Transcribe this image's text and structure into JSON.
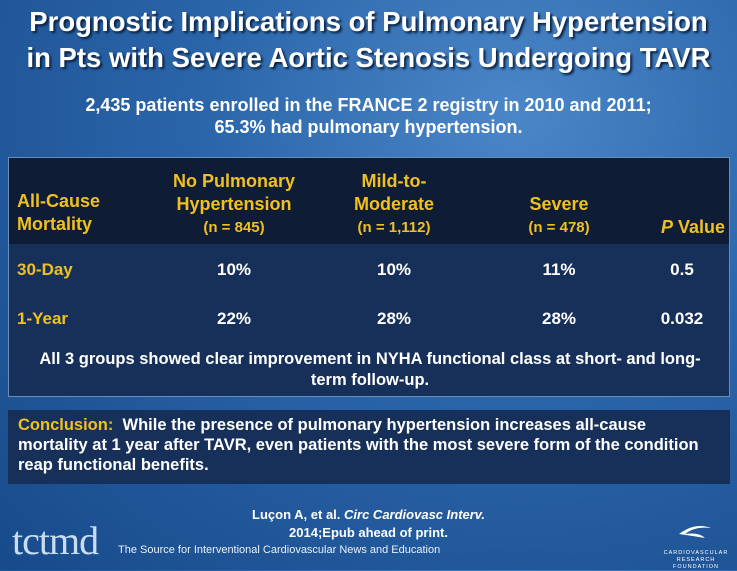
{
  "header": {
    "title_lines": [
      "Prognostic Implications of Pulmonary Hypertension",
      "in Pts with Severe Aortic Stenosis Undergoing TAVR"
    ],
    "subtitle_lines": [
      "2,435 patients enrolled in the FRANCE 2 registry in 2010 and 2011;",
      "65.3% had pulmonary hypertension."
    ]
  },
  "table": {
    "headers": [
      {
        "text": "All-Cause Mortality"
      },
      {
        "text": "No Pulmonary Hypertension",
        "n": "(n = 845)"
      },
      {
        "text": "Mild-to-Moderate",
        "n": "(n = 1,112)"
      },
      {
        "text": "Severe",
        "n": "(n = 478)"
      },
      {
        "italic": "P",
        "text": "Value"
      }
    ],
    "rows": [
      [
        "30-Day",
        "10%",
        "10%",
        "11%",
        "0.5"
      ],
      [
        "1-Year",
        "22%",
        "28%",
        "28%",
        "0.032"
      ]
    ],
    "note": "All 3 groups showed clear improvement in NYHA functional class at short- and long-term follow-up."
  },
  "conclusion": {
    "label": "Conclusion:",
    "text": "While the presence of pulmonary hypertension increases all-cause mortality at 1 year after TAVR, even patients with the most severe form of the condition reap functional benefits."
  },
  "citation": {
    "authors": "Luçon A, et al.",
    "journal": "Circ Cardiovasc Interv.",
    "detail": "2014;Epub ahead of print."
  },
  "footer": {
    "logo": "tctmd",
    "tagline": "The Source for Interventional Cardiovascular News and Education",
    "foundation": "CARDIOVASCULAR RESEARCH FOUNDATION"
  }
}
